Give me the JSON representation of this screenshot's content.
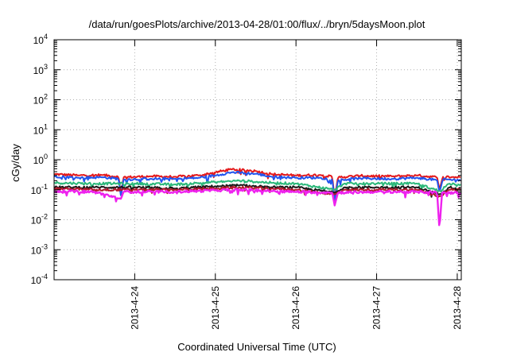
{
  "chart_data": {
    "type": "line",
    "title": "/data/run/goesPlots/archive/2013-04-28/01:00/flux/../bryn/5daysMoon.plot",
    "xlabel": "Coordinated Universal Time (UTC)",
    "ylabel": "cGy/day",
    "yscale": "log",
    "ylim": [
      0.0001,
      10000
    ],
    "xlim_days": [
      23.0,
      28.05
    ],
    "grid": true,
    "yticks": [
      {
        "base": "10",
        "exp": "-4",
        "value": 0.0001
      },
      {
        "base": "10",
        "exp": "-3",
        "value": 0.001
      },
      {
        "base": "10",
        "exp": "-2",
        "value": 0.01
      },
      {
        "base": "10",
        "exp": "-1",
        "value": 0.1
      },
      {
        "base": "10",
        "exp": "0",
        "value": 1
      },
      {
        "base": "10",
        "exp": "1",
        "value": 10
      },
      {
        "base": "10",
        "exp": "2",
        "value": 100
      },
      {
        "base": "10",
        "exp": "3",
        "value": 1000
      },
      {
        "base": "10",
        "exp": "4",
        "value": 10000
      }
    ],
    "xticks": [
      {
        "label": "2013-4-24",
        "day": 24
      },
      {
        "label": "2013-4-25",
        "day": 25
      },
      {
        "label": "2013-4-26",
        "day": 26
      },
      {
        "label": "2013-4-27",
        "day": 27
      },
      {
        "label": "2013-4-28",
        "day": 28
      }
    ],
    "series": [
      {
        "color": "#e41a1c",
        "base": 0.3,
        "points": [
          [
            23.0,
            0.33
          ],
          [
            23.3,
            0.3
          ],
          [
            23.6,
            0.31
          ],
          [
            23.8,
            0.27
          ],
          [
            23.83,
            0.07
          ],
          [
            23.86,
            0.26
          ],
          [
            24.2,
            0.28
          ],
          [
            24.5,
            0.27
          ],
          [
            24.8,
            0.3
          ],
          [
            25.0,
            0.38
          ],
          [
            25.2,
            0.48
          ],
          [
            25.5,
            0.42
          ],
          [
            25.7,
            0.33
          ],
          [
            26.0,
            0.3
          ],
          [
            26.3,
            0.31
          ],
          [
            26.45,
            0.27
          ],
          [
            26.48,
            0.05
          ],
          [
            26.52,
            0.26
          ],
          [
            26.8,
            0.29
          ],
          [
            27.2,
            0.28
          ],
          [
            27.5,
            0.3
          ],
          [
            27.75,
            0.26
          ],
          [
            27.78,
            0.1
          ],
          [
            27.82,
            0.27
          ],
          [
            28.05,
            0.26
          ]
        ]
      },
      {
        "color": "#2255ee",
        "base": 0.26,
        "points": [
          [
            23.0,
            0.28
          ],
          [
            23.3,
            0.25
          ],
          [
            23.6,
            0.26
          ],
          [
            23.8,
            0.23
          ],
          [
            23.83,
            0.06
          ],
          [
            23.86,
            0.22
          ],
          [
            24.2,
            0.23
          ],
          [
            24.5,
            0.23
          ],
          [
            24.8,
            0.25
          ],
          [
            25.0,
            0.3
          ],
          [
            25.2,
            0.38
          ],
          [
            25.5,
            0.34
          ],
          [
            25.7,
            0.27
          ],
          [
            26.0,
            0.25
          ],
          [
            26.3,
            0.25
          ],
          [
            26.45,
            0.22
          ],
          [
            26.48,
            0.04
          ],
          [
            26.52,
            0.21
          ],
          [
            26.8,
            0.24
          ],
          [
            27.2,
            0.23
          ],
          [
            27.5,
            0.25
          ],
          [
            27.75,
            0.21
          ],
          [
            27.78,
            0.08
          ],
          [
            27.82,
            0.22
          ],
          [
            28.05,
            0.21
          ]
        ]
      },
      {
        "color": "#2bb87a",
        "base": 0.17,
        "points": [
          [
            23.0,
            0.17
          ],
          [
            23.5,
            0.16
          ],
          [
            24.0,
            0.16
          ],
          [
            24.5,
            0.15
          ],
          [
            25.0,
            0.18
          ],
          [
            25.3,
            0.2
          ],
          [
            25.7,
            0.17
          ],
          [
            26.0,
            0.16
          ],
          [
            26.48,
            0.1
          ],
          [
            26.6,
            0.16
          ],
          [
            27.0,
            0.16
          ],
          [
            27.5,
            0.16
          ],
          [
            27.78,
            0.09
          ],
          [
            27.9,
            0.16
          ],
          [
            28.05,
            0.15
          ]
        ]
      },
      {
        "color": "#1a1a1a",
        "base": 0.12,
        "points": [
          [
            23.0,
            0.12
          ],
          [
            23.5,
            0.12
          ],
          [
            24.0,
            0.12
          ],
          [
            24.5,
            0.11
          ],
          [
            25.0,
            0.13
          ],
          [
            25.3,
            0.14
          ],
          [
            25.7,
            0.12
          ],
          [
            26.0,
            0.12
          ],
          [
            26.48,
            0.08
          ],
          [
            26.6,
            0.12
          ],
          [
            27.0,
            0.12
          ],
          [
            27.5,
            0.12
          ],
          [
            27.78,
            0.07
          ],
          [
            27.9,
            0.12
          ],
          [
            28.05,
            0.11
          ]
        ]
      },
      {
        "color": "#b3172b",
        "base": 0.11,
        "points": [
          [
            23.0,
            0.11
          ],
          [
            23.5,
            0.1
          ],
          [
            24.0,
            0.1
          ],
          [
            24.5,
            0.1
          ],
          [
            25.0,
            0.11
          ],
          [
            25.3,
            0.12
          ],
          [
            25.7,
            0.11
          ],
          [
            26.0,
            0.1
          ],
          [
            26.48,
            0.07
          ],
          [
            26.6,
            0.1
          ],
          [
            27.0,
            0.1
          ],
          [
            27.5,
            0.1
          ],
          [
            27.78,
            0.06
          ],
          [
            27.9,
            0.1
          ],
          [
            28.05,
            0.1
          ]
        ]
      },
      {
        "color": "#ee22ee",
        "base": 0.09,
        "points": [
          [
            23.0,
            0.09
          ],
          [
            23.5,
            0.085
          ],
          [
            23.83,
            0.05
          ],
          [
            23.86,
            0.085
          ],
          [
            24.0,
            0.085
          ],
          [
            24.5,
            0.085
          ],
          [
            25.0,
            0.095
          ],
          [
            25.3,
            0.1
          ],
          [
            25.7,
            0.09
          ],
          [
            26.0,
            0.085
          ],
          [
            26.45,
            0.08
          ],
          [
            26.48,
            0.03
          ],
          [
            26.52,
            0.08
          ],
          [
            27.0,
            0.085
          ],
          [
            27.5,
            0.085
          ],
          [
            27.75,
            0.08
          ],
          [
            27.78,
            0.0045
          ],
          [
            27.81,
            0.08
          ],
          [
            28.05,
            0.08
          ]
        ]
      }
    ]
  }
}
